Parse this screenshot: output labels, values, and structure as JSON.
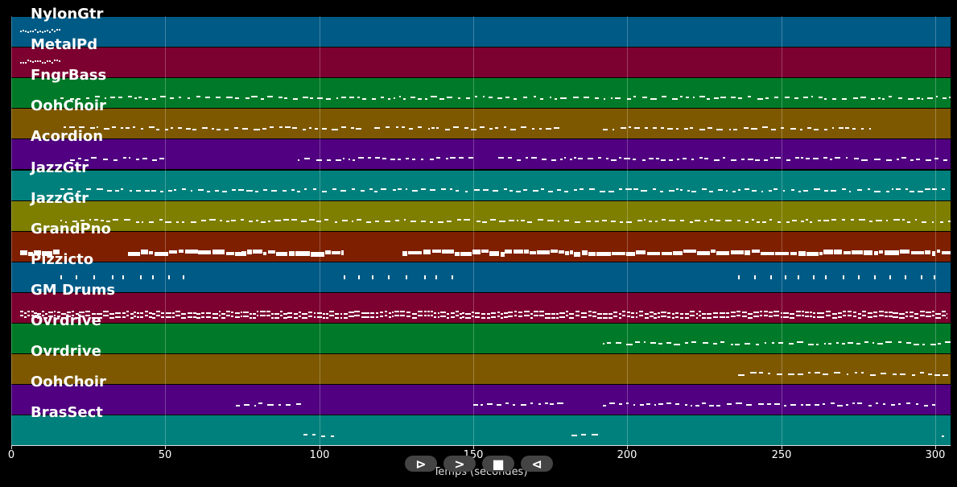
{
  "tracks": [
    {
      "name": "NylonGtr",
      "color": "#005a86",
      "density": 0,
      "segments": [
        [
          3,
          16
        ]
      ]
    },
    {
      "name": "MetalPd",
      "color": "#7c0030",
      "density": 0,
      "segments": [
        [
          3,
          16
        ]
      ]
    },
    {
      "name": "FngrBass",
      "color": "#007a28",
      "density": 1,
      "segments": [
        [
          16,
          305
        ]
      ]
    },
    {
      "name": "OohChoir",
      "color": "#7e5800",
      "density": 1,
      "segments": [
        [
          17,
          115
        ],
        [
          118,
          180
        ],
        [
          192,
          280
        ]
      ]
    },
    {
      "name": "Acordion",
      "color": "#500080",
      "density": 1,
      "segments": [
        [
          19,
          50
        ],
        [
          93,
          150
        ],
        [
          158,
          305
        ]
      ]
    },
    {
      "name": "JazzGtr",
      "color": "#00807c",
      "density": 1,
      "segments": [
        [
          16,
          305
        ]
      ]
    },
    {
      "name": "JazzGtr",
      "color": "#7e7e00",
      "density": 1,
      "segments": [
        [
          16,
          305
        ]
      ]
    },
    {
      "name": "GrandPno",
      "color": "#7e2000",
      "density": 2,
      "segments": [
        [
          3,
          16
        ],
        [
          38,
          108
        ],
        [
          127,
          305
        ]
      ]
    },
    {
      "name": "Pizzicto",
      "color": "#005a86",
      "density": 0,
      "segments": [
        [
          16,
          58
        ],
        [
          108,
          148
        ],
        [
          236,
          300
        ]
      ]
    },
    {
      "name": "GM Drums",
      "color": "#7c0030",
      "density": 3,
      "segments": [
        [
          3,
          304
        ]
      ]
    },
    {
      "name": "Ovrdrive",
      "color": "#007a28",
      "density": 1,
      "segments": [
        [
          192,
          305
        ]
      ]
    },
    {
      "name": "Ovrdrive",
      "color": "#7e5800",
      "density": 1,
      "segments": [
        [
          236,
          305
        ]
      ]
    },
    {
      "name": "OohChoir",
      "color": "#500080",
      "density": 1,
      "segments": [
        [
          73,
          95
        ],
        [
          150,
          180
        ],
        [
          192,
          300
        ]
      ]
    },
    {
      "name": "BrasSect",
      "color": "#00807c",
      "density": 1,
      "segments": [
        [
          95,
          105
        ],
        [
          182,
          192
        ],
        [
          302,
          305
        ]
      ]
    }
  ],
  "xaxis": {
    "label": "Temps (secondes)",
    "ticks": [
      "0",
      "50",
      "100",
      "150",
      "200",
      "250",
      "300"
    ],
    "min": 0,
    "max": 305
  },
  "controls": [
    {
      "name": "play-button",
      "icon": "play-icon",
      "glyph": "⊳"
    },
    {
      "name": "forward-button",
      "icon": "chevron-right-icon",
      "glyph": ">"
    },
    {
      "name": "stop-button",
      "icon": "stop-icon",
      "glyph": "■"
    },
    {
      "name": "rewind-button",
      "icon": "rewind-icon",
      "glyph": "⊲"
    }
  ]
}
